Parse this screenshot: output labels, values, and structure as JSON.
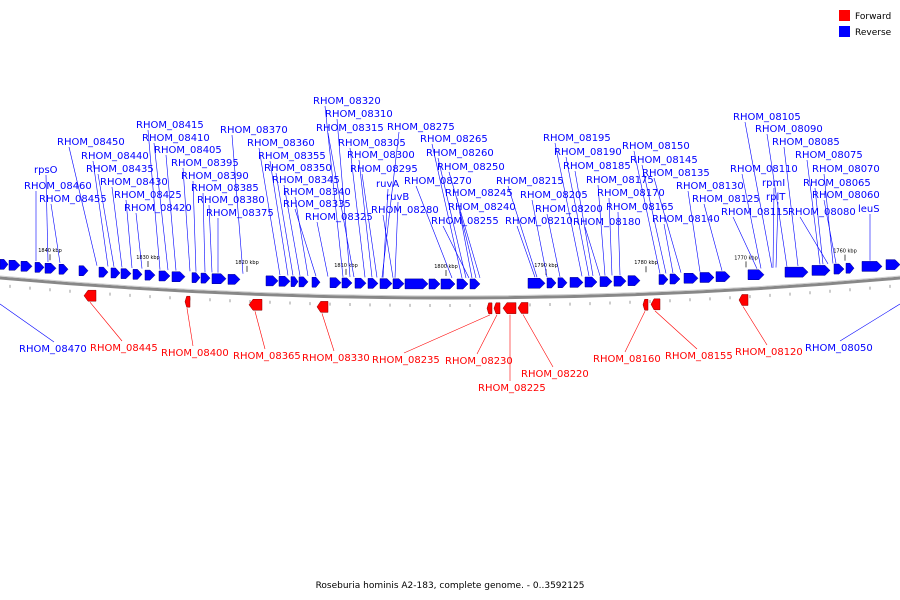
{
  "caption": "Roseburia hominis A2-183, complete genome. - 0..3592125",
  "legend": [
    {
      "label": "Forward",
      "color": "#ff0000"
    },
    {
      "label": "Reverse",
      "color": "#0000ff"
    }
  ],
  "colors": {
    "forward": "#ff0000",
    "reverse": "#0000ff",
    "backbone": "#888888"
  },
  "scale_ticks": [
    "1840 kbp",
    "1830 kbp",
    "1820 kbp",
    "1810 kbp",
    "1800 kbp",
    "1790 kbp",
    "1780 kbp",
    "1770 kbp",
    "1760 kbp"
  ],
  "reverse_labels": [
    "RHOM_08320",
    "RHOM_08310",
    "RHOM_08315",
    "RHOM_08275",
    "RHOM_08370",
    "RHOM_08415",
    "RHOM_08410",
    "RHOM_08450",
    "RHOM_08405",
    "RHOM_08440",
    "RHOM_08395",
    "RHOM_08435",
    "rpsO",
    "RHOM_08430",
    "RHOM_08460",
    "RHOM_08425",
    "RHOM_08455",
    "RHOM_08420",
    "RHOM_08390",
    "RHOM_08385",
    "RHOM_08380",
    "RHOM_08375",
    "RHOM_08360",
    "RHOM_08355",
    "RHOM_08350",
    "RHOM_08345",
    "RHOM_08340",
    "RHOM_08335",
    "RHOM_08325",
    "RHOM_08305",
    "RHOM_08300",
    "RHOM_08295",
    "ruvA",
    "ruvB",
    "RHOM_08280",
    "RHOM_08265",
    "RHOM_08260",
    "RHOM_08250",
    "RHOM_08270",
    "RHOM_08245",
    "RHOM_08240",
    "RHOM_08255",
    "RHOM_08195",
    "RHOM_08190",
    "RHOM_08185",
    "RHOM_08175",
    "RHOM_08170",
    "RHOM_08165",
    "RHOM_08180",
    "RHOM_08215",
    "RHOM_08205",
    "RHOM_08200",
    "RHOM_08210",
    "RHOM_08150",
    "RHOM_08145",
    "RHOM_08135",
    "RHOM_08130",
    "RHOM_08125",
    "RHOM_08140",
    "RHOM_08105",
    "RHOM_08090",
    "RHOM_08085",
    "RHOM_08075",
    "RHOM_08110",
    "RHOM_08070",
    "rpmI",
    "RHOM_08065",
    "rplT",
    "RHOM_08060",
    "RHOM_08115",
    "RHOM_08080",
    "leuS",
    "RHOM_08470",
    "RHOM_08050"
  ],
  "forward_labels": [
    "RHOM_08445",
    "RHOM_08400",
    "RHOM_08365",
    "RHOM_08330",
    "RHOM_08235",
    "RHOM_08230",
    "RHOM_08225",
    "RHOM_08220",
    "RHOM_08160",
    "RHOM_08155",
    "RHOM_08120"
  ]
}
